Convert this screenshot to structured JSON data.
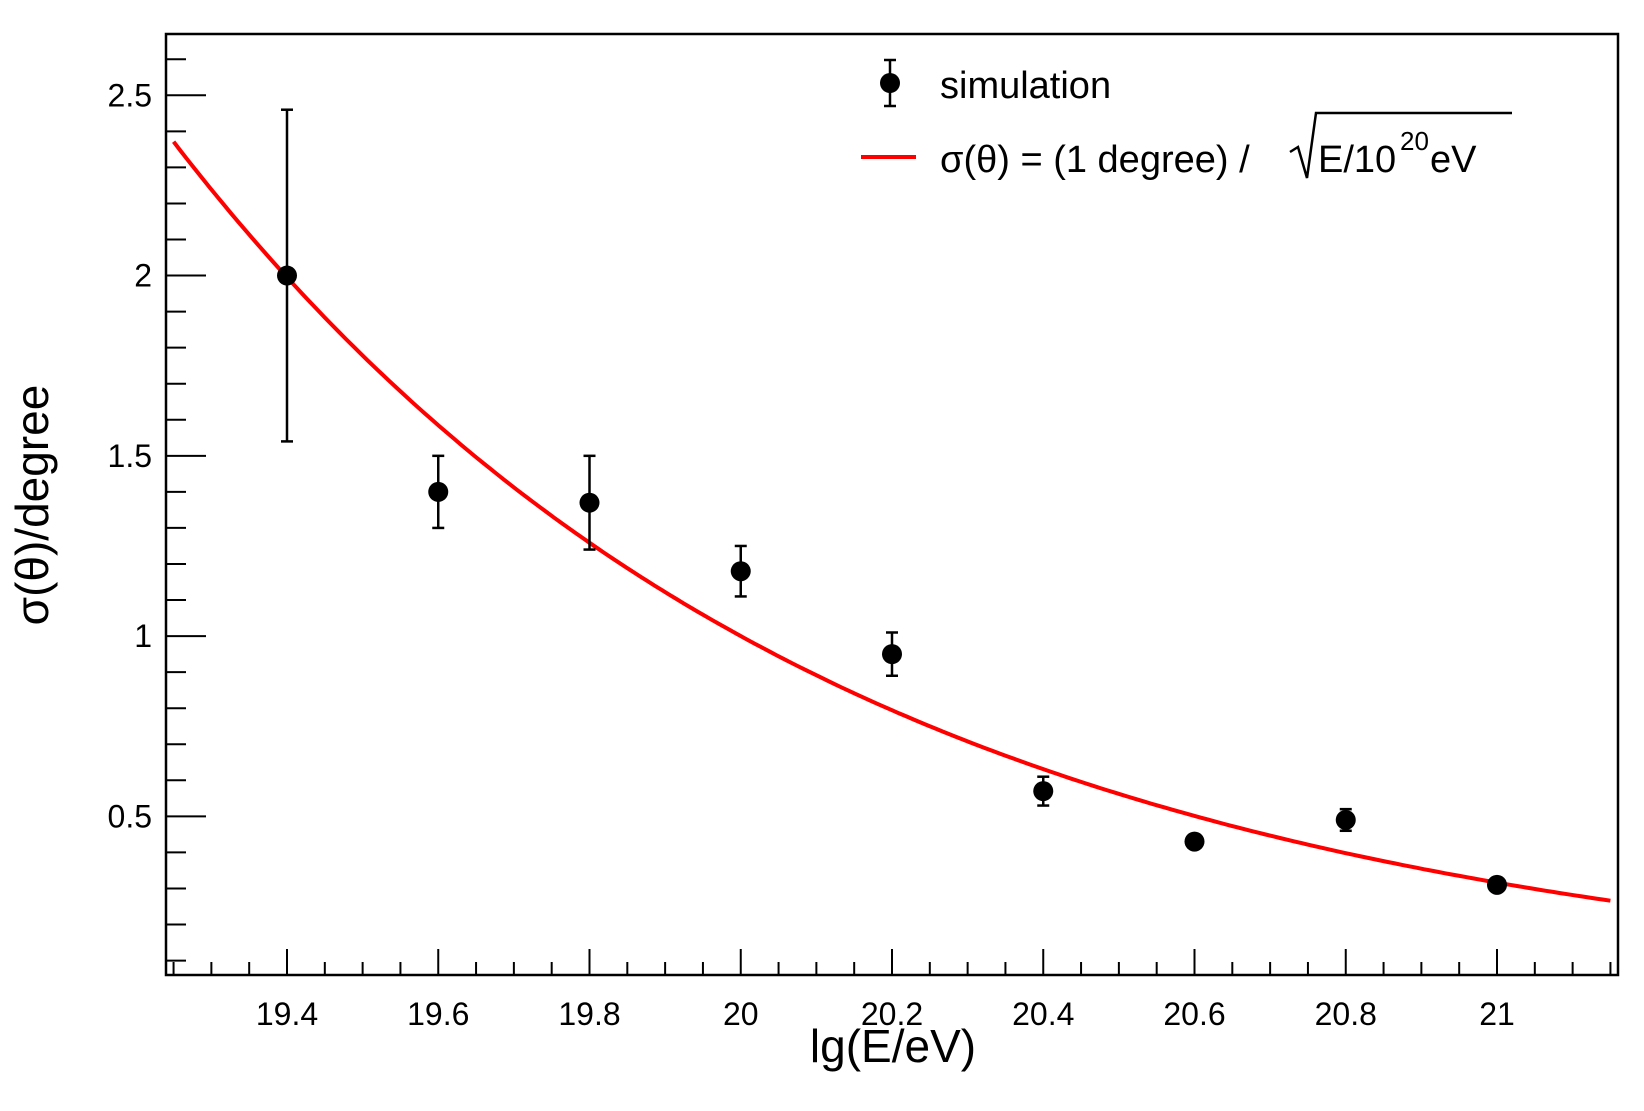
{
  "chart_data": {
    "type": "scatter",
    "xlabel": "lg(E/eV)",
    "ylabel": "σ(θ)/degree",
    "xlim": [
      19.24,
      21.16
    ],
    "ylim": [
      0.06,
      2.67
    ],
    "grid": false,
    "legend_position": "top-right",
    "x_ticks": [
      19.4,
      19.6,
      19.8,
      20.0,
      20.2,
      20.4,
      20.6,
      20.8,
      21.0
    ],
    "x_tick_labels": [
      "19.4",
      "19.6",
      "19.8",
      "20",
      "20.2",
      "20.4",
      "20.6",
      "20.8",
      "21"
    ],
    "y_ticks": [
      0.5,
      1.0,
      1.5,
      2.0,
      2.5
    ],
    "y_tick_labels": [
      "0.5",
      "1",
      "1.5",
      "2",
      "2.5"
    ],
    "series": [
      {
        "name": "simulation",
        "type": "scatter",
        "color": "#000000",
        "x": [
          19.4,
          19.6,
          19.8,
          20.0,
          20.2,
          20.4,
          20.6,
          20.8,
          21.0
        ],
        "y": [
          2.0,
          1.4,
          1.37,
          1.18,
          0.95,
          0.57,
          0.43,
          0.49,
          0.31
        ],
        "yerr": [
          0.46,
          0.1,
          0.13,
          0.07,
          0.06,
          0.04,
          0.015,
          0.03,
          0.015
        ]
      },
      {
        "name": "σ(θ) = (1 degree) / √E/10²⁰ eV",
        "type": "line",
        "color": "#ff0000",
        "formula": "y = 1 / sqrt(10^(x - 20))",
        "x_range": [
          19.25,
          21.15
        ]
      }
    ],
    "legend": {
      "entries": [
        {
          "marker": "point-errorbar",
          "text": "simulation"
        },
        {
          "marker": "line",
          "text_main": "σ(θ) = (1 degree) / ",
          "text_root": "E/10",
          "text_sup": "20",
          "text_tail": " eV"
        }
      ]
    }
  }
}
